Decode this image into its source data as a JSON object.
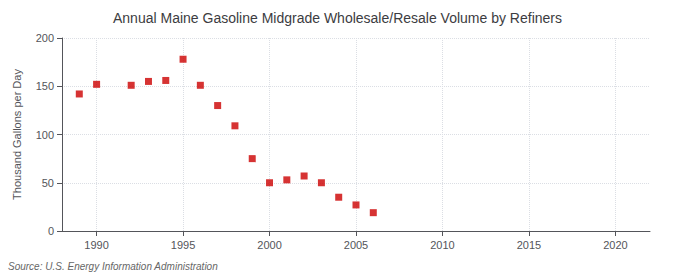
{
  "chart_data": {
    "type": "scatter",
    "title": "Annual Maine Gasoline Midgrade Wholesale/Resale Volume by Refiners",
    "ylabel": "Thousand Gallons per Day",
    "annotations": [
      "Source: U.S. Energy Information Administration"
    ],
    "x": [
      1989,
      1990,
      1992,
      1993,
      1994,
      1995,
      1996,
      1997,
      1998,
      1999,
      2000,
      2001,
      2002,
      2003,
      2004,
      2005,
      2006
    ],
    "values": [
      142,
      152,
      151,
      155,
      156,
      178,
      151,
      130,
      109,
      75,
      50,
      53,
      57,
      50,
      35,
      27,
      19
    ],
    "color": "#cc0000",
    "marker": "square",
    "xlim": [
      1988,
      2022
    ],
    "xticks": [
      1990,
      1995,
      2000,
      2005,
      2010,
      2015,
      2020
    ],
    "ylim": [
      0,
      200
    ],
    "yticks": [
      0,
      50,
      100,
      150,
      200
    ],
    "grid": true
  }
}
